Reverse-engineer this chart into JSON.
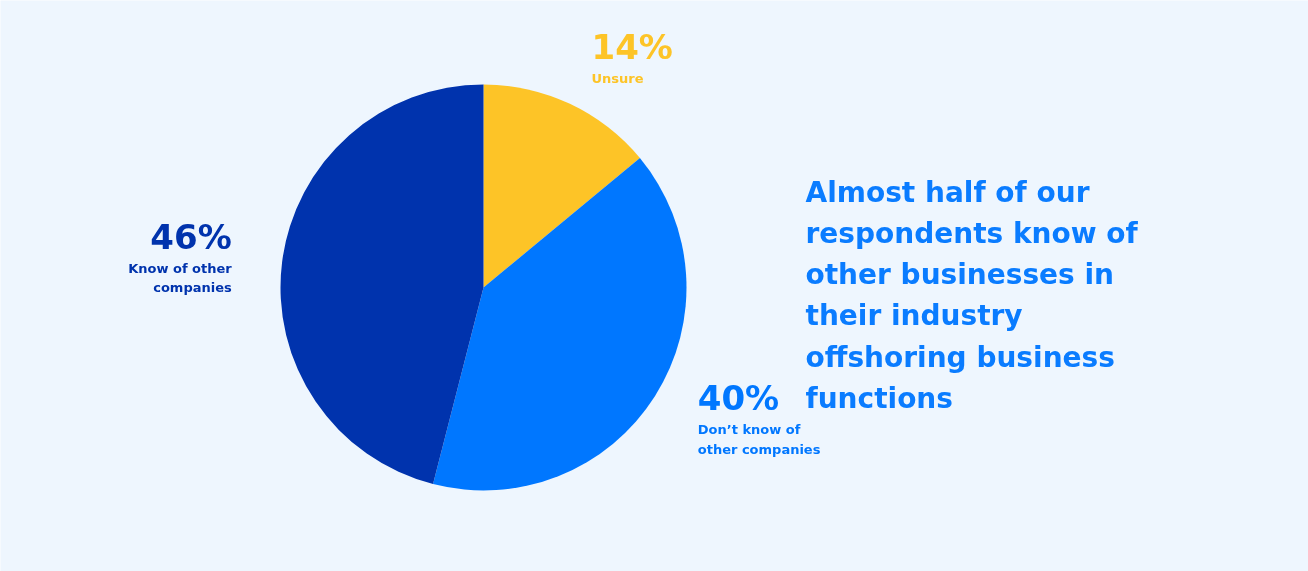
{
  "chart_data": {
    "type": "pie",
    "title": "Almost half of our respondents know of other businesses in their industry offshoring business functions",
    "categories": [
      "Unsure",
      "Don’t know of other companies",
      "Know of other companies"
    ],
    "values": [
      14,
      40,
      46
    ],
    "value_labels": [
      "14%",
      "40%",
      "46%"
    ],
    "colors": [
      "#fdc427",
      "#0077ff",
      "#0033ad"
    ]
  }
}
